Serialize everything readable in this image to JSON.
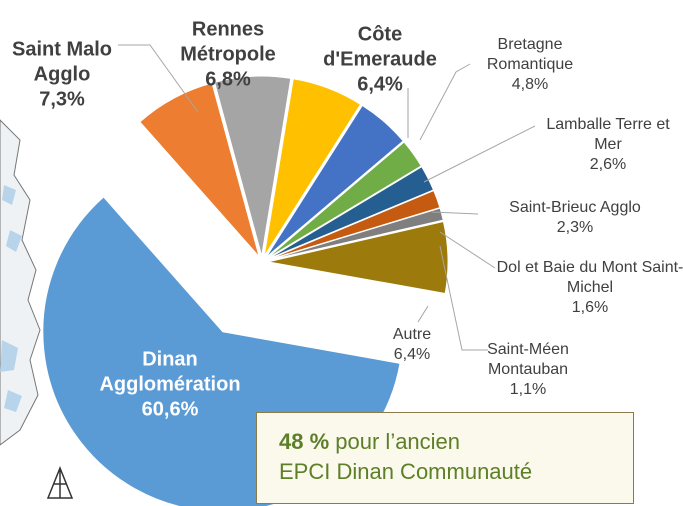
{
  "chart_data": {
    "type": "pie",
    "categories": [
      "Saint Malo Agglo",
      "Rennes Métropole",
      "Côte d'Emeraude",
      "Bretagne Romantique",
      "Lamballe Terre et Mer",
      "Saint-Brieuc Agglo",
      "Dol et Baie du Mont Saint-Michel",
      "Autre",
      "Dinan Agglomération",
      "Saint-Méen Montauban"
    ],
    "values": [
      7.3,
      6.8,
      6.4,
      4.8,
      2.6,
      2.3,
      1.6,
      6.4,
      60.6,
      1.1
    ],
    "value_labels": [
      "7,3%",
      "6,8%",
      "6,4%",
      "4,8%",
      "2,6%",
      "2,3%",
      "1,6%",
      "6,4%",
      "60,6%",
      "1,1%"
    ],
    "colors": [
      "#ed7d31",
      "#a5a5a5",
      "#ffc000",
      "#4472c4",
      "#70ad47",
      "#255e91",
      "#c55a11",
      "#9c7a0c",
      "#5b9bd5",
      "#7f7f7f"
    ],
    "annotation": {
      "highlight": "48 %",
      "lines": [
        "pour l’ancien",
        "EPCI Dinan Communauté"
      ]
    }
  }
}
